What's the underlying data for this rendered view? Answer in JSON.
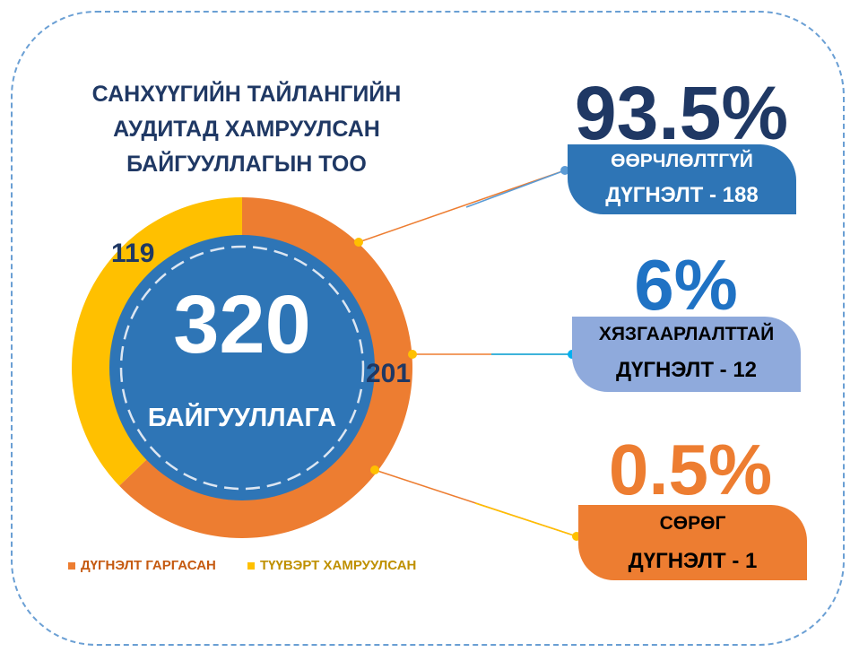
{
  "title_lines": [
    "САНХҮҮГИЙН ТАЙЛАНГИЙН",
    "АУДИТАД ХАМРУУЛСАН",
    "БАЙГУУЛЛАГЫН ТОО"
  ],
  "center": {
    "total": "320",
    "unit": "БАЙГУУЛЛАГА"
  },
  "chart_data": {
    "type": "pie",
    "title": "САНХҮҮГИЙН ТАЙЛАНГИЙН АУДИТАД ХАМРУУЛСАН БАЙГУУЛЛАГЫН ТОО",
    "categories": [
      "ДҮГНЭЛТ ГАРГАСАН",
      "ТҮҮВЭРТ ХАМРУУЛСАН"
    ],
    "values": [
      201,
      119
    ],
    "value_labels": [
      "201",
      "119"
    ],
    "colors": [
      "#ed7d31",
      "#ffc000"
    ],
    "legend_position": "bottom"
  },
  "legend": [
    {
      "label": "ДҮГНЭЛТ ГАРГАСАН",
      "color": "#ed7d31",
      "text_color": "#c55a11"
    },
    {
      "label": "ТҮҮВЭРТ ХАМРУУЛСАН",
      "color": "#ffc000",
      "text_color": "#bf9000"
    }
  ],
  "breakdown": [
    {
      "percent": "93.5%",
      "line1": "ӨӨРЧЛӨЛТГҮЙ",
      "line2": "ДҮГНЭЛТ - 188",
      "value": 188,
      "percent_color": "#1f3864",
      "box_color": "#2e75b6",
      "text_color": "#ffffff"
    },
    {
      "percent": "6%",
      "line1": "ХЯЗГААРЛАЛТТАЙ",
      "line2": "ДҮГНЭЛТ - 12",
      "value": 12,
      "percent_color": "#1f72c4",
      "box_color": "#8faadc",
      "text_color": "#000000"
    },
    {
      "percent": "0.5%",
      "line1": "СӨРӨГ",
      "line2": "ДҮГНЭЛТ - 1",
      "value": 1,
      "percent_color": "#ed7d31",
      "box_color": "#ed7d31",
      "text_color": "#000000"
    }
  ]
}
